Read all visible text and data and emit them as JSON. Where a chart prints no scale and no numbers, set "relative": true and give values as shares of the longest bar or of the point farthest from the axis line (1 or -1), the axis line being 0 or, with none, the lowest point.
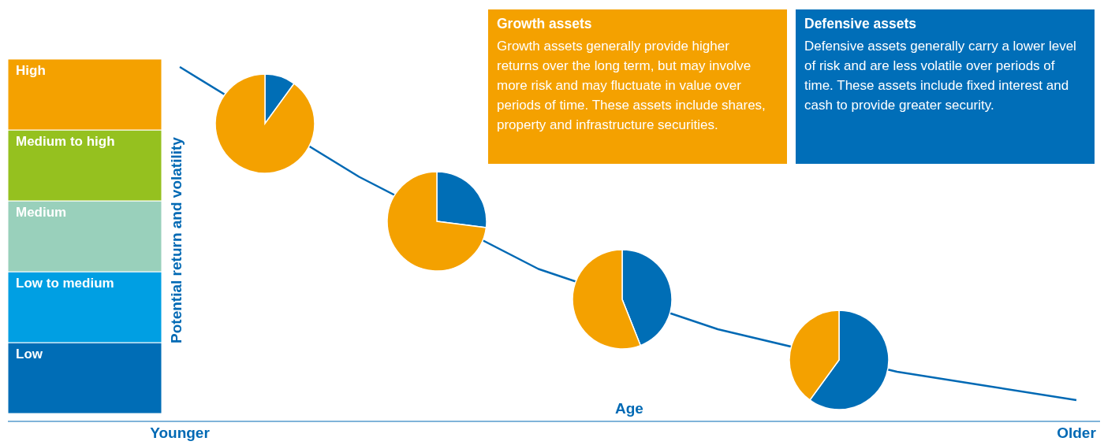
{
  "chart_data": [
    {
      "type": "bar",
      "stacked": true,
      "relative": true,
      "categories": [
        null
      ],
      "series": [
        {
          "name": "Low",
          "color": "#006db6",
          "values": [
            0.2
          ]
        },
        {
          "name": "Low to medium",
          "color": "#009fe3",
          "values": [
            0.2
          ]
        },
        {
          "name": "Medium",
          "color": "#99d0bb",
          "values": [
            0.2
          ]
        },
        {
          "name": "Medium to high",
          "color": "#95c11f",
          "values": [
            0.2
          ]
        },
        {
          "name": "High",
          "color": "#f4a100",
          "values": [
            0.2
          ]
        }
      ]
    },
    {
      "type": "line",
      "relative": true,
      "xlabel": "Age",
      "ylabel": "Potential return and volatility",
      "color": "#0069b4",
      "categories": [
        "Younger",
        null,
        null,
        null,
        null,
        null,
        null,
        null,
        null,
        null,
        "Older"
      ],
      "values": [
        1,
        null,
        0.69,
        null,
        0.43,
        null,
        0.26,
        null,
        0.14,
        0.1,
        0.06
      ]
    },
    {
      "type": "pie",
      "categories": [
        null,
        null
      ],
      "values": [
        10,
        90
      ],
      "colors": [
        "#006eb6",
        "#f4a100"
      ]
    },
    {
      "type": "pie",
      "categories": [
        null,
        null
      ],
      "values": [
        27,
        73
      ],
      "colors": [
        "#006eb6",
        "#f4a100"
      ]
    },
    {
      "type": "pie",
      "categories": [
        null,
        null
      ],
      "values": [
        44,
        56
      ],
      "colors": [
        "#006eb6",
        "#f4a100"
      ]
    },
    {
      "type": "pie",
      "categories": [
        null,
        null
      ],
      "values": [
        60,
        40
      ],
      "colors": [
        "#006eb6",
        "#f4a100"
      ]
    },
    {
      "type": "other",
      "title": "Growth assets",
      "color": "#f4a100",
      "annotations": [
        "Growth assets generally provide higher returns over the long term, but may involve more risk and may fluctuate in value over periods of time. These assets include shares, property and infrastructure securities."
      ]
    },
    {
      "type": "other",
      "title": "Defensive assets",
      "color": "#006eb8",
      "annotations": [
        "Defensive assets generally carry a lower level of risk and are less volatile over periods of time. These assets include fixed interest and cash to provide greater security."
      ]
    }
  ]
}
